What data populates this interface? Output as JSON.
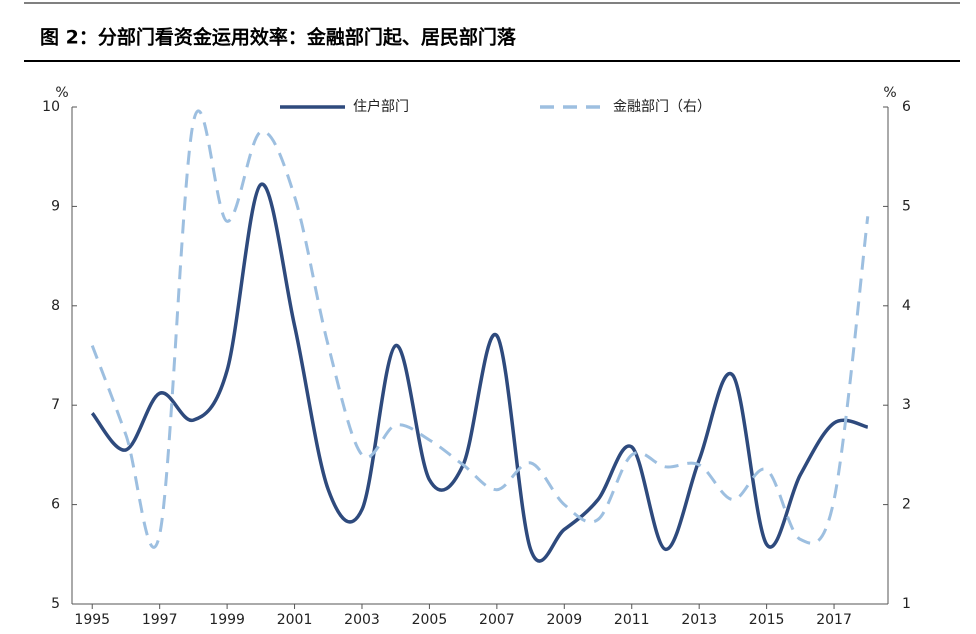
{
  "chart_data": {
    "type": "line",
    "title": "图 2：分部门看资金运用效率：金融部门起、居民部门落",
    "y_unit": "%",
    "y2_unit": "%",
    "x": [
      1995,
      1996,
      1997,
      1998,
      1999,
      2000,
      2001,
      2002,
      2003,
      2004,
      2005,
      2006,
      2007,
      2008,
      2009,
      2010,
      2011,
      2012,
      2013,
      2014,
      2015,
      2016,
      2017,
      2018
    ],
    "xlim": [
      1994.4,
      2018.6
    ],
    "xticks": [
      1995,
      1997,
      1999,
      2001,
      2003,
      2005,
      2007,
      2009,
      2011,
      2013,
      2015,
      2017
    ],
    "ylim": [
      5,
      10
    ],
    "yticks": [
      5,
      6,
      7,
      8,
      9,
      10
    ],
    "y2lim": [
      1,
      6
    ],
    "y2ticks": [
      1,
      2,
      3,
      4,
      5,
      6
    ],
    "series": [
      {
        "name": "住户部门",
        "color": "#2e4a7d",
        "style": "solid",
        "values": [
          6.92,
          6.55,
          7.12,
          6.85,
          7.35,
          9.22,
          7.8,
          6.15,
          5.95,
          7.6,
          6.25,
          6.4,
          7.7,
          5.55,
          5.75,
          6.05,
          6.58,
          5.55,
          6.45,
          7.3,
          5.6,
          6.3,
          6.82,
          6.78
        ]
      },
      {
        "name": "金融部门（右）",
        "color": "#9dbfe0",
        "style": "dashed",
        "axis": "y2",
        "values": [
          3.6,
          2.7,
          1.7,
          5.85,
          4.85,
          5.75,
          5.1,
          3.6,
          2.5,
          2.8,
          2.65,
          2.4,
          2.15,
          2.42,
          2.0,
          1.85,
          2.5,
          2.38,
          2.4,
          2.05,
          2.35,
          1.65,
          2.05,
          4.9
        ]
      }
    ]
  }
}
